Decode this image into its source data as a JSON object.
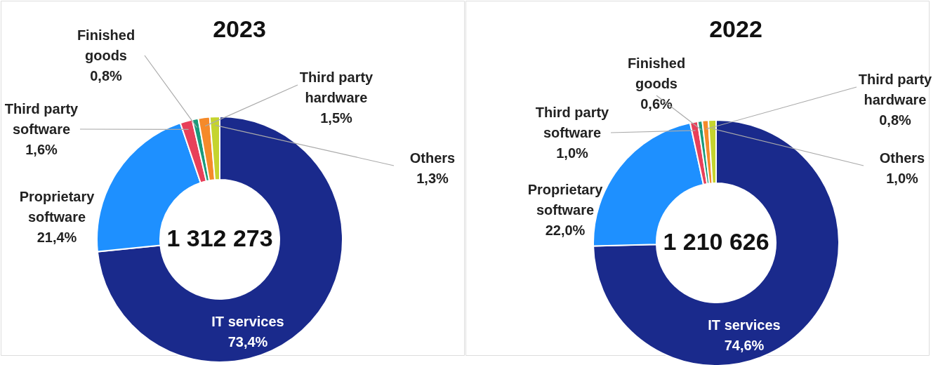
{
  "chart_data": [
    {
      "type": "donut",
      "title": "2023",
      "categories": [
        "IT services",
        "Proprietary software",
        "Third party software",
        "Finished goods",
        "Third party hardware",
        "Others"
      ],
      "values": [
        73.4,
        21.4,
        1.6,
        0.8,
        1.5,
        1.3
      ],
      "value_labels": [
        "73,4%",
        "21,4%",
        "1,6%",
        "0,8%",
        "1,5%",
        "1,3%"
      ],
      "colors": [
        "#1a2a8c",
        "#1e90ff",
        "#e8405a",
        "#1a9a7a",
        "#f58a2a",
        "#c5d42e"
      ],
      "annotations": [
        "1 312 273"
      ],
      "legend": false
    },
    {
      "type": "donut",
      "title": "2022",
      "categories": [
        "IT services",
        "Proprietary software",
        "Third party software",
        "Finished goods",
        "Third party hardware",
        "Others"
      ],
      "values": [
        74.6,
        22.0,
        1.0,
        0.6,
        0.8,
        1.0
      ],
      "value_labels": [
        "74,6%",
        "22,0%",
        "1,0%",
        "0,6%",
        "0,8%",
        "1,0%"
      ],
      "colors": [
        "#1a2a8c",
        "#1e90ff",
        "#e8405a",
        "#1a9a7a",
        "#f58a2a",
        "#c5d42e"
      ],
      "annotations": [
        "1 210 626"
      ],
      "legend": false
    }
  ]
}
